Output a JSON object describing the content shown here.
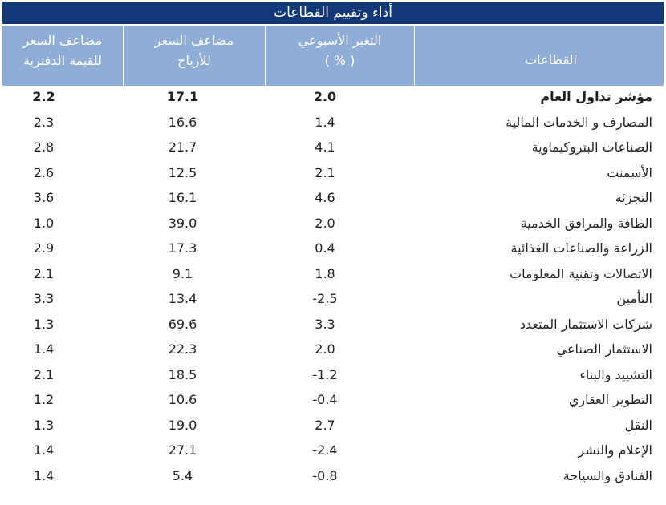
{
  "title": "أداء وتقييم القطاعات",
  "headers": {
    "pb_line1": "مضاعف السعر",
    "pb_line2": "للقيمة الدفترية",
    "pe_line1": "مضاعف السعر",
    "pe_line2": "للأرباح",
    "weekly_line1": "التغير الأسبوعي",
    "weekly_line2": "( % )",
    "sector": "القطاعات"
  },
  "rows": [
    {
      "name": "مؤشر تداول العام",
      "weekly": "2.0",
      "pe": "17.1",
      "pb": "2.2"
    },
    {
      "name": "المصارف و الخدمات المالية",
      "weekly": "1.4",
      "pe": "16.6",
      "pb": "2.3"
    },
    {
      "name": "الصناعات البتروكيماوية",
      "weekly": "4.1",
      "pe": "21.7",
      "pb": "2.8"
    },
    {
      "name": "الأسمنت",
      "weekly": "2.1",
      "pe": "12.5",
      "pb": "2.6"
    },
    {
      "name": "التجزئة",
      "weekly": "4.6",
      "pe": "16.1",
      "pb": "3.6"
    },
    {
      "name": "الطاقة والمرافق الخدمية",
      "weekly": "2.0",
      "pe": "39.0",
      "pb": "1.0"
    },
    {
      "name": "الزراعة والصناعات الغذائية",
      "weekly": "0.4",
      "pe": "17.3",
      "pb": "2.9"
    },
    {
      "name": "الاتصالات وتقنية المعلومات",
      "weekly": "1.8",
      "pe": "9.1",
      "pb": "2.1"
    },
    {
      "name": "التأمين",
      "weekly": "-2.5",
      "pe": "13.4",
      "pb": "3.3"
    },
    {
      "name": "شركات الاستثمار المتعدد",
      "weekly": "3.3",
      "pe": "69.6",
      "pb": "1.3"
    },
    {
      "name": "الاستثمار الصناعي",
      "weekly": "2.0",
      "pe": "22.3",
      "pb": "1.4"
    },
    {
      "name": "التشييد والبناء",
      "weekly": "-1.2",
      "pe": "18.5",
      "pb": "2.1"
    },
    {
      "name": "التطوير العقاري",
      "weekly": "-0.4",
      "pe": "10.6",
      "pb": "1.2"
    },
    {
      "name": "النقل",
      "weekly": "2.7",
      "pe": "19.0",
      "pb": "1.3"
    },
    {
      "name": "الإعلام والنشر",
      "weekly": "-2.4",
      "pe": "27.1",
      "pb": "1.4"
    },
    {
      "name": "الفنادق والسياحة",
      "weekly": "-0.8",
      "pe": "5.4",
      "pb": "1.4"
    }
  ]
}
